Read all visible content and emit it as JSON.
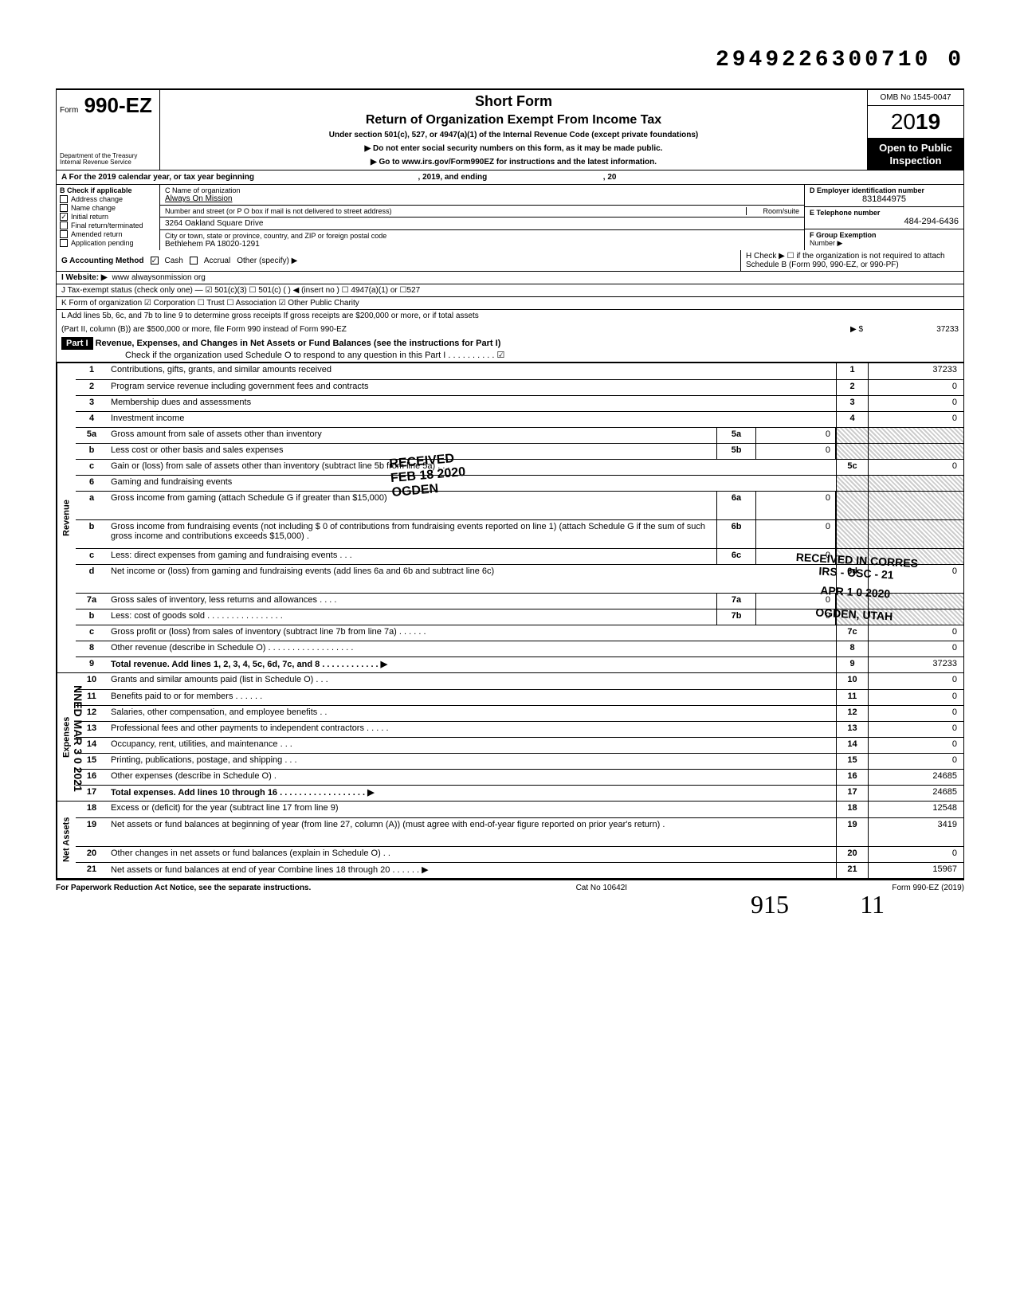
{
  "dln": "2949226300710 0",
  "form": {
    "number": "990-EZ",
    "prefix": "Form",
    "dept1": "Department of the Treasury",
    "dept2": "Internal Revenue Service",
    "shortForm": "Short Form",
    "title": "Return of Organization Exempt From Income Tax",
    "subtitle": "Under section 501(c), 527, or 4947(a)(1) of the Internal Revenue Code (except private foundations)",
    "inst1": "▶ Do not enter social security numbers on this form, as it may be made public.",
    "inst2": "▶ Go to www.irs.gov/Form990EZ for instructions and the latest information.",
    "omb": "OMB No 1545-0047",
    "year": "2019",
    "yearTwo": "20",
    "inspection1": "Open to Public",
    "inspection2": "Inspection"
  },
  "rowA": "A For the 2019 calendar year, or tax year beginning",
  "rowA2": ", 2019, and ending",
  "rowA3": ", 20",
  "sectionB": {
    "header": "B Check if applicable",
    "items": [
      "Address change",
      "Name change",
      "Initial return",
      "Final return/terminated",
      "Amended return",
      "Application pending"
    ],
    "checked": [
      false,
      false,
      true,
      false,
      false,
      false
    ]
  },
  "sectionC": {
    "nameLabel": "C Name of organization",
    "name": "Always On Mission",
    "addrLabel": "Number and street (or P O  box if mail is not delivered to street address)",
    "roomLabel": "Room/suite",
    "addr": "3264 Oakland Square Drive",
    "cityLabel": "City or town, state or province, country, and ZIP or foreign postal code",
    "city": "Bethlehem PA 18020-1291"
  },
  "sectionD": {
    "label": "D Employer identification number",
    "value": "831844975"
  },
  "sectionE": {
    "label": "E Telephone number",
    "value": "484-294-6436"
  },
  "sectionF": {
    "label": "F Group Exemption",
    "label2": "Number ▶"
  },
  "lineG": {
    "label": "G Accounting Method",
    "opt1": "Cash",
    "opt2": "Accrual",
    "opt3": "Other (specify) ▶"
  },
  "lineH": "H Check ▶ ☐ if the organization is not required to attach Schedule B (Form 990, 990-EZ, or 990-PF)",
  "lineI": {
    "label": "I  Website: ▶",
    "value": "www alwaysonmission org"
  },
  "lineJ": "J  Tax-exempt status (check only one) — ☑ 501(c)(3)   ☐ 501(c) (        ) ◀ (insert no ) ☐ 4947(a)(1) or   ☐527",
  "lineK": "K Form of organization   ☑ Corporation    ☐ Trust        ☐ Association    ☑ Other   Public Charity",
  "lineL1": "L  Add lines 5b, 6c, and 7b to line 9 to determine gross receipts  If gross receipts are $200,000 or more, or if total assets",
  "lineL2": "(Part II, column (B)) are $500,000 or more, file Form 990 instead of Form 990-EZ",
  "lineL_arrow": "▶   $",
  "lineL_val": "37233",
  "part1": {
    "label": "Part I",
    "title": "Revenue, Expenses, and Changes in Net Assets or Fund Balances (see the instructions for Part I)",
    "check": "Check if the organization used Schedule O to respond to any question in this Part I . . . . . . . . . . ☑"
  },
  "sideLabels": {
    "revenue": "Revenue",
    "expenses": "Expenses",
    "netassets": "Net Assets"
  },
  "lines": [
    {
      "n": "1",
      "desc": "Contributions, gifts, grants, and similar amounts received",
      "en": "1",
      "ev": "37233"
    },
    {
      "n": "2",
      "desc": "Program service revenue including government fees and contracts",
      "en": "2",
      "ev": "0"
    },
    {
      "n": "3",
      "desc": "Membership dues and assessments",
      "en": "3",
      "ev": "0"
    },
    {
      "n": "4",
      "desc": "Investment income",
      "en": "4",
      "ev": "0"
    },
    {
      "n": "5a",
      "desc": "Gross amount from sale of assets other than inventory",
      "mn": "5a",
      "mv": "0",
      "shaded": true
    },
    {
      "n": "b",
      "desc": "Less  cost or other basis and sales expenses",
      "mn": "5b",
      "mv": "0",
      "shaded": true
    },
    {
      "n": "c",
      "desc": "Gain or (loss) from sale of assets other than inventory (subtract line 5b from line 5a)  .  .  .",
      "en": "5c",
      "ev": "0"
    },
    {
      "n": "6",
      "desc": "Gaming and fundraising events",
      "shaded": true,
      "noend": true
    },
    {
      "n": "a",
      "desc": "Gross income from gaming (attach Schedule G if greater than $15,000)",
      "mn": "6a",
      "mv": "0",
      "shaded": true,
      "multi": true
    },
    {
      "n": "b",
      "desc": "Gross income from fundraising events (not including  $                      0 of contributions from fundraising events reported on line 1) (attach Schedule G if the sum of such gross income and contributions exceeds $15,000) .",
      "mn": "6b",
      "mv": "0",
      "shaded": true,
      "multi": true
    },
    {
      "n": "c",
      "desc": "Less: direct expenses from gaming and fundraising events   .   .   .",
      "mn": "6c",
      "mv": "0",
      "shaded": true
    },
    {
      "n": "d",
      "desc": "Net income or (loss) from gaming and fundraising events (add lines 6a and 6b and subtract line 6c)",
      "en": "6d",
      "ev": "0",
      "multi": true
    },
    {
      "n": "7a",
      "desc": "Gross sales of inventory, less returns and allowances  .  .  .  .",
      "mn": "7a",
      "mv": "0",
      "shaded": true
    },
    {
      "n": "b",
      "desc": "Less: cost of goods sold     .   .   .   .   .   .   .   .   .   .   .   .   .   .   .   .",
      "mn": "7b",
      "mv": "0",
      "shaded": true
    },
    {
      "n": "c",
      "desc": "Gross profit or (loss) from sales of inventory (subtract line 7b from line 7a)    .    .    .   .   .   .",
      "en": "7c",
      "ev": "0"
    },
    {
      "n": "8",
      "desc": "Other revenue (describe in Schedule O) .   .   .   .   .   .   .   .   .   .   .   .   .   .   .   .   .   .",
      "en": "8",
      "ev": "0"
    },
    {
      "n": "9",
      "desc": "Total revenue. Add lines 1, 2, 3, 4, 5c, 6d, 7c, and 8   .   .   .   .   .   .   .   .   .   .   .   .  ▶",
      "en": "9",
      "ev": "37233",
      "bold": true
    }
  ],
  "expLines": [
    {
      "n": "10",
      "desc": "Grants and similar amounts paid (list in Schedule O)    .   .   .",
      "en": "10",
      "ev": "0"
    },
    {
      "n": "11",
      "desc": "Benefits paid to or for members   .     .     .     .    .    .",
      "en": "11",
      "ev": "0"
    },
    {
      "n": "12",
      "desc": "Salaries, other compensation, and employee benefits  .  .",
      "en": "12",
      "ev": "0"
    },
    {
      "n": "13",
      "desc": "Professional fees and other payments to independent contractors .   .   .   .   .",
      "en": "13",
      "ev": "0"
    },
    {
      "n": "14",
      "desc": "Occupancy, rent, utilities, and maintenance    .     .     .",
      "en": "14",
      "ev": "0"
    },
    {
      "n": "15",
      "desc": "Printing, publications, postage, and shipping .  .  .",
      "en": "15",
      "ev": "0"
    },
    {
      "n": "16",
      "desc": "Other expenses (describe in Schedule O)   .",
      "en": "16",
      "ev": "24685"
    },
    {
      "n": "17",
      "desc": "Total expenses. Add lines 10 through 16  .   .   .   .   .   .   .   .   .   .   .   .   .   .   .   .   .   .   ▶",
      "en": "17",
      "ev": "24685",
      "bold": true
    }
  ],
  "netLines": [
    {
      "n": "18",
      "desc": "Excess or (deficit) for the year (subtract line 17 from line 9)",
      "en": "18",
      "ev": "12548"
    },
    {
      "n": "19",
      "desc": "Net assets or fund balances at beginning of year (from line 27, column (A)) (must agree with end-of-year figure reported on prior year's return)    .",
      "en": "19",
      "ev": "3419",
      "multi": true
    },
    {
      "n": "20",
      "desc": "Other changes in net assets or fund balances (explain in Schedule O) .  .",
      "en": "20",
      "ev": "0"
    },
    {
      "n": "21",
      "desc": "Net assets or fund balances at end of year  Combine lines 18 through 20    .   .   .   .   .   .  ▶",
      "en": "21",
      "ev": "15967"
    }
  ],
  "footer": {
    "left": "For Paperwork Reduction Act Notice, see the separate instructions.",
    "mid": "Cat No  10642I",
    "right": "Form 990-EZ (2019)"
  },
  "stamps": {
    "received": "RECEIVED",
    "date": "FEB 18 2020",
    "ogden": "OGDEN",
    "corres1": "RECEIVED IN CORRES",
    "corres2": "IRS - OSC - 21",
    "corres3": "APR 1 0 2020",
    "corres4": "OGDEN, UTAH",
    "scanned": "NNED MAR 3 0 2021"
  },
  "handwritten": {
    "v1": "915",
    "v2": "11"
  }
}
